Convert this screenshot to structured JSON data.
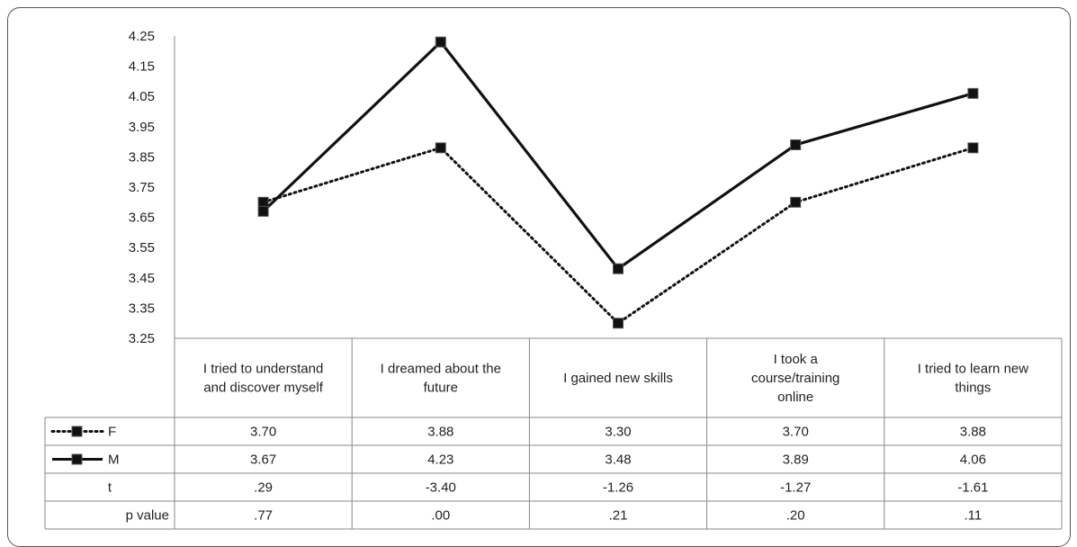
{
  "chart_data": {
    "type": "line",
    "title": "",
    "xlabel": "",
    "ylabel": "",
    "ylim": [
      3.25,
      4.25
    ],
    "yticks": [
      "4.25",
      "4.15",
      "4.05",
      "3.95",
      "3.85",
      "3.75",
      "3.65",
      "3.55",
      "3.45",
      "3.35",
      "3.25"
    ],
    "categories": [
      [
        "I tried to understand",
        "and discover myself"
      ],
      [
        "I dreamed about the",
        "future"
      ],
      [
        "I gained new skills"
      ],
      [
        "I took a",
        "course/training",
        "online"
      ],
      [
        "I tried to learn new",
        "things"
      ]
    ],
    "series": [
      {
        "name": "F",
        "style": "dotted",
        "color": "#111111",
        "values": [
          3.7,
          3.88,
          3.3,
          3.7,
          3.88
        ],
        "labels": [
          "3.70",
          "3.88",
          "3.30",
          "3.70",
          "3.88"
        ]
      },
      {
        "name": "M",
        "style": "solid",
        "color": "#111111",
        "values": [
          3.67,
          4.23,
          3.48,
          3.89,
          4.06
        ],
        "labels": [
          "3.67",
          "4.23",
          "3.48",
          "3.89",
          "4.06"
        ]
      }
    ],
    "extra_rows": [
      {
        "name": "t",
        "labels": [
          ".29",
          "-3.40",
          "-1.26",
          "-1.27",
          "-1.61"
        ]
      },
      {
        "name": "p value",
        "labels": [
          ".77",
          ".00",
          ".21",
          ".20",
          ".11"
        ]
      }
    ],
    "grid": false,
    "legend": "data-table"
  }
}
